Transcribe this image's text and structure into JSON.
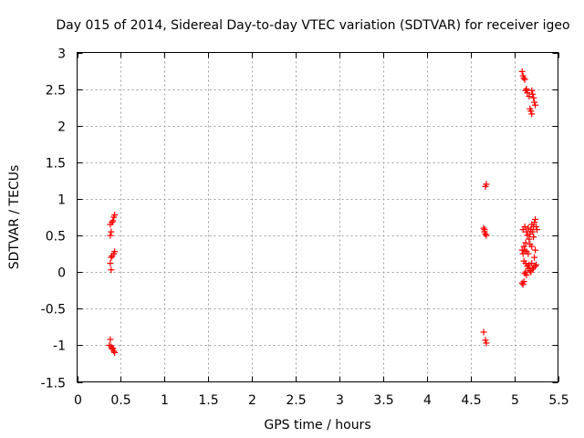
{
  "chart_data": {
    "type": "scatter",
    "title": "Day 015 of 2014, Sidereal Day-to-day VTEC variation (SDTVAR) for receiver igeo",
    "xlabel": "GPS time / hours",
    "ylabel": "SDTVAR / TECUs",
    "xlim": [
      0,
      5.5
    ],
    "ylim": [
      -1.5,
      3
    ],
    "xticks": [
      0,
      0.5,
      1,
      1.5,
      2,
      2.5,
      3,
      3.5,
      4,
      4.5,
      5,
      5.5
    ],
    "xtick_labels": [
      "0",
      "0.5",
      "1",
      "1.5",
      "2",
      "2.5",
      "3",
      "3.5",
      "4",
      "4.5",
      "5",
      "5.5"
    ],
    "yticks": [
      -1.5,
      -1,
      -0.5,
      0,
      0.5,
      1,
      1.5,
      2,
      2.5,
      3
    ],
    "ytick_labels": [
      "-1.5",
      "-1",
      "-0.5",
      "0",
      "0.5",
      "1",
      "1.5",
      "2",
      "2.5",
      "3"
    ],
    "grid": true,
    "marker": "+",
    "marker_color": "#ff0000",
    "series": [
      {
        "name": "SDTVAR",
        "points": [
          [
            0.38,
            0.5
          ],
          [
            0.39,
            0.55
          ],
          [
            0.38,
            0.65
          ],
          [
            0.4,
            0.68
          ],
          [
            0.42,
            0.75
          ],
          [
            0.43,
            0.78
          ],
          [
            0.41,
            0.7
          ],
          [
            0.38,
            0.12
          ],
          [
            0.39,
            0.03
          ],
          [
            0.4,
            0.22
          ],
          [
            0.42,
            0.25
          ],
          [
            0.43,
            0.28
          ],
          [
            0.39,
            0.2
          ],
          [
            0.38,
            -0.92
          ],
          [
            0.37,
            -1.0
          ],
          [
            0.39,
            -1.02
          ],
          [
            0.4,
            -1.05
          ],
          [
            0.42,
            -1.08
          ],
          [
            0.43,
            -1.1
          ],
          [
            0.41,
            -1.04
          ],
          [
            4.67,
            1.17
          ],
          [
            4.68,
            1.2
          ],
          [
            4.65,
            0.6
          ],
          [
            4.66,
            0.55
          ],
          [
            4.67,
            0.52
          ],
          [
            4.68,
            0.5
          ],
          [
            4.66,
            0.58
          ],
          [
            4.65,
            -0.82
          ],
          [
            4.67,
            -0.93
          ],
          [
            4.68,
            -0.97
          ],
          [
            5.09,
            2.74
          ],
          [
            5.1,
            2.68
          ],
          [
            5.12,
            2.63
          ],
          [
            5.11,
            2.65
          ],
          [
            5.13,
            2.48
          ],
          [
            5.15,
            2.45
          ],
          [
            5.17,
            2.4
          ],
          [
            5.2,
            2.48
          ],
          [
            5.21,
            2.43
          ],
          [
            5.22,
            2.38
          ],
          [
            5.23,
            2.32
          ],
          [
            5.24,
            2.28
          ],
          [
            5.19,
            2.2
          ],
          [
            5.18,
            2.23
          ],
          [
            5.2,
            2.16
          ],
          [
            5.14,
            2.5
          ],
          [
            5.1,
            0.58
          ],
          [
            5.12,
            0.62
          ],
          [
            5.14,
            0.55
          ],
          [
            5.15,
            0.5
          ],
          [
            5.16,
            0.6
          ],
          [
            5.18,
            0.52
          ],
          [
            5.19,
            0.58
          ],
          [
            5.2,
            0.65
          ],
          [
            5.21,
            0.55
          ],
          [
            5.22,
            0.62
          ],
          [
            5.23,
            0.68
          ],
          [
            5.24,
            0.72
          ],
          [
            5.25,
            0.62
          ],
          [
            5.26,
            0.58
          ],
          [
            5.22,
            0.48
          ],
          [
            5.17,
            0.45
          ],
          [
            5.13,
            0.4
          ],
          [
            5.11,
            0.35
          ],
          [
            5.12,
            0.3
          ],
          [
            5.14,
            0.28
          ],
          [
            5.1,
            0.25
          ],
          [
            5.09,
            0.3
          ],
          [
            5.11,
            0.15
          ],
          [
            5.13,
            0.12
          ],
          [
            5.15,
            0.08
          ],
          [
            5.16,
            0.05
          ],
          [
            5.18,
            0.02
          ],
          [
            5.19,
            0.0
          ],
          [
            5.17,
            0.1
          ],
          [
            5.21,
            0.04
          ],
          [
            5.22,
            0.06
          ],
          [
            5.24,
            0.08
          ],
          [
            5.25,
            0.1
          ],
          [
            5.2,
            0.12
          ],
          [
            5.23,
            0.2
          ],
          [
            5.24,
            0.3
          ],
          [
            5.2,
            0.35
          ],
          [
            5.18,
            0.38
          ],
          [
            5.16,
            0.25
          ],
          [
            5.12,
            -0.02
          ],
          [
            5.13,
            0.0
          ],
          [
            5.14,
            -0.04
          ],
          [
            5.09,
            -0.15
          ],
          [
            5.1,
            -0.17
          ],
          [
            5.11,
            -0.13
          ]
        ]
      }
    ]
  }
}
